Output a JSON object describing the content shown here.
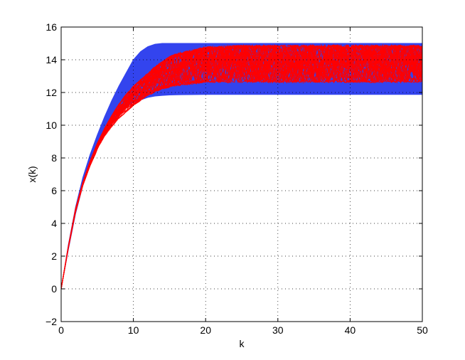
{
  "chart_data": {
    "type": "line",
    "title": "",
    "xlabel": "k",
    "ylabel": "x(k)",
    "xlim": [
      0,
      50
    ],
    "ylim": [
      -2,
      16
    ],
    "xticks": [
      0,
      10,
      20,
      30,
      40,
      50
    ],
    "yticks": [
      -2,
      0,
      2,
      4,
      6,
      8,
      10,
      12,
      14,
      16
    ],
    "xtick_labels": [
      "0",
      "10",
      "20",
      "30",
      "40",
      "50"
    ],
    "ytick_labels": [
      "−2",
      "0",
      "2",
      "4",
      "6",
      "8",
      "10",
      "12",
      "14",
      "16"
    ],
    "grid": true,
    "legend": "none",
    "colors": {
      "band": "#3344ee",
      "trajectories": "#ff0000",
      "axes": "#000000"
    },
    "bounds_band": {
      "x": [
        0,
        1,
        2,
        3,
        4,
        5,
        6,
        7,
        8,
        9,
        10,
        11,
        12,
        13,
        14,
        15,
        16,
        18,
        20,
        25,
        30,
        40,
        50
      ],
      "upper": [
        0,
        2.7,
        5.0,
        6.8,
        8.2,
        9.4,
        10.5,
        11.5,
        12.4,
        13.2,
        14.0,
        14.5,
        14.8,
        14.95,
        15.0,
        15.0,
        15.0,
        15.0,
        15.0,
        15.0,
        15.0,
        15.0,
        15.0
      ],
      "lower": [
        0,
        2.4,
        4.6,
        6.3,
        7.6,
        8.7,
        9.5,
        10.2,
        10.7,
        11.1,
        11.4,
        11.55,
        11.7,
        11.78,
        11.82,
        11.85,
        11.86,
        11.87,
        11.88,
        11.88,
        11.88,
        11.88,
        11.88
      ]
    },
    "trajectory_envelope": {
      "x": [
        0,
        1,
        2,
        3,
        4,
        5,
        6,
        7,
        8,
        9,
        10,
        11,
        12,
        13,
        14,
        15,
        16,
        18,
        20,
        25,
        30,
        40,
        50
      ],
      "upper": [
        0,
        2.6,
        4.9,
        6.5,
        7.8,
        8.9,
        9.8,
        10.6,
        11.3,
        11.9,
        12.4,
        12.8,
        13.2,
        13.6,
        13.9,
        14.2,
        14.4,
        14.6,
        14.8,
        14.9,
        14.9,
        14.9,
        14.9
      ],
      "lower": [
        0,
        2.5,
        4.7,
        6.3,
        7.5,
        8.5,
        9.3,
        9.9,
        10.4,
        10.8,
        11.2,
        11.5,
        11.8,
        12.0,
        12.2,
        12.3,
        12.4,
        12.5,
        12.6,
        12.6,
        12.6,
        12.6,
        12.6
      ]
    }
  }
}
